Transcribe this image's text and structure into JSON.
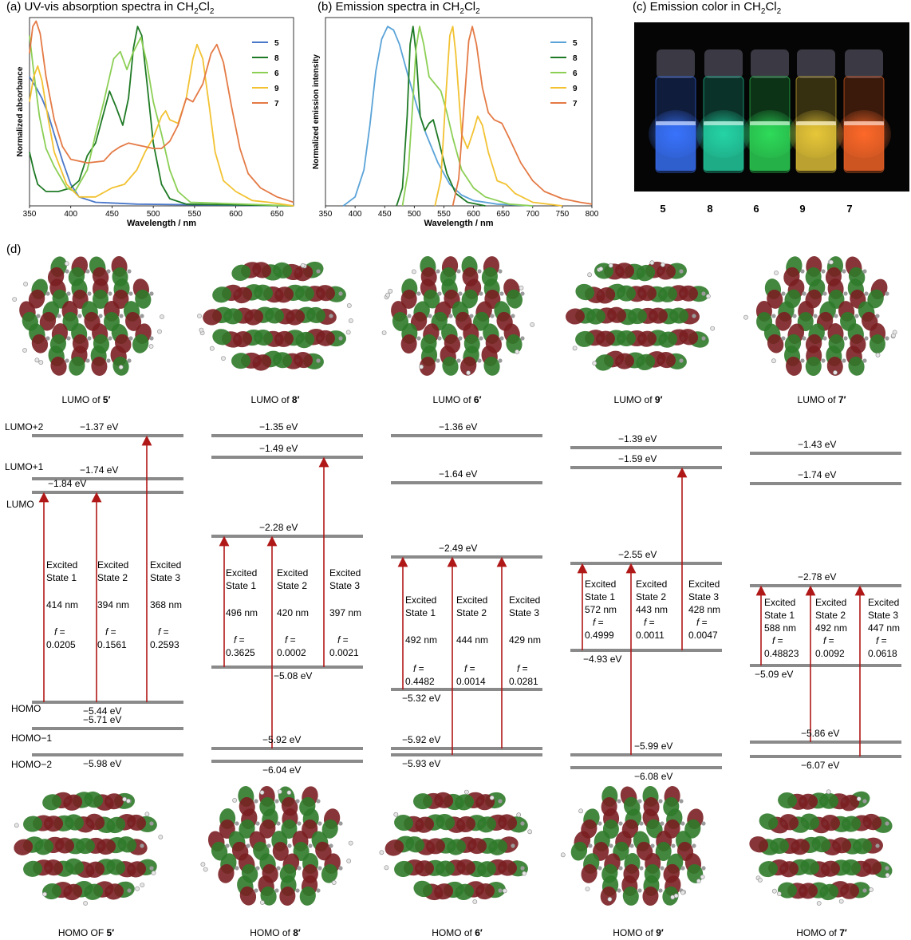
{
  "panels": {
    "a_title": "(a) UV-vis absorption spectra in CH",
    "b_title": "(b) Emission spectra in CH",
    "c_title": "(c) Emission color in CH",
    "d_label": "(d)",
    "sub2": "2",
    "cl": "Cl",
    "sub2b": "2"
  },
  "vials": {
    "labels": [
      "5",
      "8",
      "6",
      "9",
      "7"
    ],
    "colors": [
      "#3a74ff",
      "#25d6a7",
      "#2fdc5a",
      "#e8c83a",
      "#ff6a2a"
    ]
  },
  "orbitals": {
    "lumo_prefix": [
      "LUMO of ",
      "LUMO  of ",
      "LUMO of ",
      "LUMO of ",
      "LUMO of "
    ],
    "homo_prefix": [
      "HOMO OF ",
      "HOMO of ",
      "HOMO of ",
      "HOMO of ",
      "HOMO of "
    ],
    "compound": [
      "5′",
      "8′",
      "6′",
      "9′",
      "7′"
    ],
    "colors": {
      "lobe_red": "#7a1f22",
      "lobe_green": "#2f7a2a",
      "atom_grey": "#9a9a9a"
    }
  },
  "energy_side_labels": [
    "LUMO+2",
    "LUMO+1",
    "LUMO",
    "HOMO",
    "HOMO−1",
    "HOMO−2"
  ],
  "energy_levels": [
    {
      "upper": [
        "−1.37 eV",
        "−1.74 eV",
        "−1.84 eV"
      ],
      "lower": [
        "−5.44 eV",
        "−5.71 eV",
        "−5.98 eV"
      ]
    },
    {
      "upper": [
        "−1.35 eV",
        "−1.49 eV",
        "−2.28 eV"
      ],
      "lower": [
        "−5.08 eV",
        "−5.92 eV",
        "−6.04 eV"
      ]
    },
    {
      "upper": [
        "−1.36 eV",
        "−1.64 eV",
        "−2.49 eV"
      ],
      "lower": [
        "−5.32 eV",
        "−5.92 eV",
        "−5.93 eV"
      ]
    },
    {
      "upper": [
        "−1.39 eV",
        "−1.59 eV",
        "−2.55 eV"
      ],
      "lower": [
        "−4.93 eV",
        "−5.99 eV",
        "−6.08 eV"
      ]
    },
    {
      "upper": [
        "−1.43 eV",
        "−1.74 eV",
        "−2.78 eV"
      ],
      "lower": [
        "−5.09 eV",
        "−5.86 eV",
        "−6.07 eV"
      ]
    }
  ],
  "excited_states": [
    [
      {
        "name": [
          "Excited",
          "State 1"
        ],
        "nm": "414 nm",
        "f": "0.0205"
      },
      {
        "name": [
          "Excited",
          "State 2"
        ],
        "nm": "394 nm",
        "f": "0.1561"
      },
      {
        "name": [
          "Excited",
          "State 3"
        ],
        "nm": "368 nm",
        "f": "0.2593"
      }
    ],
    [
      {
        "name": [
          "Excited",
          "State 1"
        ],
        "nm": "496 nm",
        "f": "0.3625"
      },
      {
        "name": [
          "Excited",
          "State 2"
        ],
        "nm": "420 nm",
        "f": "0.0002"
      },
      {
        "name": [
          "Excited",
          "State 3"
        ],
        "nm": "397 nm",
        "f": "0.0021"
      }
    ],
    [
      {
        "name": [
          "Excited",
          "State 1"
        ],
        "nm": "492 nm",
        "f": "0.4482"
      },
      {
        "name": [
          "Excited",
          "State 2"
        ],
        "nm": "444 nm",
        "f": "0.0014"
      },
      {
        "name": [
          "Excited",
          "State 3"
        ],
        "nm": "429 nm",
        "f": "0.0281"
      }
    ],
    [
      {
        "name": [
          "Excited",
          "State 1"
        ],
        "nm": "572 nm",
        "f": "0.4999"
      },
      {
        "name": [
          "Excited",
          "State 2"
        ],
        "nm": "443 nm",
        "f": "0.0011"
      },
      {
        "name": [
          "Excited",
          "State 3"
        ],
        "nm": "428 nm",
        "f": "0.0047"
      }
    ],
    [
      {
        "name": [
          "Excited",
          "State 1"
        ],
        "nm": "588 nm",
        "f": "0.48823"
      },
      {
        "name": [
          "Excited",
          "State 2"
        ],
        "nm": "492 nm",
        "f": "0.0092"
      },
      {
        "name": [
          "Excited",
          "State 3"
        ],
        "nm": "447 nm",
        "f": "0.0618"
      }
    ]
  ],
  "f_label": "f",
  "f_eq": " =",
  "chart_data": [
    {
      "type": "line",
      "title": "(a) UV-vis absorption spectra in CH2Cl2",
      "xlabel": "Wavelength / nm",
      "ylabel": "Normalized absorbance",
      "xlim": [
        350,
        670
      ],
      "ylim": [
        0,
        1.05
      ],
      "xticks": [
        350,
        400,
        450,
        500,
        550,
        600,
        650
      ],
      "legend": "top-right",
      "series": [
        {
          "name": "5",
          "color": "#4a78c8",
          "points": [
            [
              350,
              0.72
            ],
            [
              358,
              0.66
            ],
            [
              365,
              0.6
            ],
            [
              372,
              0.52
            ],
            [
              380,
              0.4
            ],
            [
              390,
              0.25
            ],
            [
              400,
              0.12
            ],
            [
              410,
              0.05
            ],
            [
              430,
              0.02
            ],
            [
              480,
              0.01
            ],
            [
              670,
              0.0
            ]
          ]
        },
        {
          "name": "8",
          "color": "#1f7a25",
          "points": [
            [
              350,
              0.3
            ],
            [
              355,
              0.2
            ],
            [
              360,
              0.12
            ],
            [
              370,
              0.08
            ],
            [
              385,
              0.08
            ],
            [
              400,
              0.1
            ],
            [
              410,
              0.14
            ],
            [
              420,
              0.28
            ],
            [
              430,
              0.35
            ],
            [
              440,
              0.52
            ],
            [
              447,
              0.64
            ],
            [
              455,
              0.55
            ],
            [
              463,
              0.45
            ],
            [
              470,
              0.6
            ],
            [
              476,
              0.88
            ],
            [
              481,
              1.0
            ],
            [
              486,
              0.95
            ],
            [
              492,
              0.7
            ],
            [
              500,
              0.35
            ],
            [
              510,
              0.12
            ],
            [
              520,
              0.04
            ],
            [
              540,
              0.01
            ],
            [
              670,
              0.0
            ]
          ]
        },
        {
          "name": "6",
          "color": "#8ccf55",
          "points": [
            [
              350,
              0.95
            ],
            [
              355,
              0.75
            ],
            [
              362,
              0.5
            ],
            [
              370,
              0.32
            ],
            [
              380,
              0.22
            ],
            [
              395,
              0.1
            ],
            [
              405,
              0.08
            ],
            [
              420,
              0.2
            ],
            [
              430,
              0.4
            ],
            [
              440,
              0.58
            ],
            [
              452,
              0.82
            ],
            [
              460,
              0.86
            ],
            [
              468,
              0.76
            ],
            [
              475,
              0.85
            ],
            [
              485,
              0.94
            ],
            [
              492,
              0.8
            ],
            [
              500,
              0.58
            ],
            [
              510,
              0.4
            ],
            [
              520,
              0.2
            ],
            [
              530,
              0.08
            ],
            [
              545,
              0.02
            ],
            [
              670,
              0.0
            ]
          ]
        },
        {
          "name": "9",
          "color": "#f2c232",
          "points": [
            [
              350,
              0.58
            ],
            [
              355,
              0.72
            ],
            [
              360,
              0.78
            ],
            [
              365,
              0.7
            ],
            [
              372,
              0.5
            ],
            [
              380,
              0.3
            ],
            [
              395,
              0.12
            ],
            [
              410,
              0.05
            ],
            [
              430,
              0.05
            ],
            [
              450,
              0.1
            ],
            [
              465,
              0.12
            ],
            [
              480,
              0.2
            ],
            [
              490,
              0.3
            ],
            [
              500,
              0.38
            ],
            [
              510,
              0.5
            ],
            [
              515,
              0.53
            ],
            [
              520,
              0.48
            ],
            [
              530,
              0.46
            ],
            [
              540,
              0.6
            ],
            [
              548,
              0.82
            ],
            [
              553,
              0.9
            ],
            [
              560,
              0.82
            ],
            [
              568,
              0.55
            ],
            [
              575,
              0.3
            ],
            [
              585,
              0.14
            ],
            [
              600,
              0.08
            ],
            [
              620,
              0.03
            ],
            [
              640,
              0.02
            ],
            [
              670,
              0.0
            ]
          ]
        },
        {
          "name": "7",
          "color": "#e47a45",
          "points": [
            [
              350,
              0.85
            ],
            [
              354,
              1.0
            ],
            [
              358,
              1.03
            ],
            [
              363,
              0.96
            ],
            [
              370,
              0.72
            ],
            [
              380,
              0.48
            ],
            [
              390,
              0.33
            ],
            [
              400,
              0.26
            ],
            [
              420,
              0.24
            ],
            [
              440,
              0.25
            ],
            [
              450,
              0.3
            ],
            [
              460,
              0.33
            ],
            [
              470,
              0.35
            ],
            [
              480,
              0.34
            ],
            [
              490,
              0.33
            ],
            [
              500,
              0.32
            ],
            [
              510,
              0.32
            ],
            [
              520,
              0.36
            ],
            [
              530,
              0.45
            ],
            [
              540,
              0.6
            ],
            [
              548,
              0.58
            ],
            [
              560,
              0.68
            ],
            [
              570,
              0.85
            ],
            [
              577,
              0.9
            ],
            [
              585,
              0.8
            ],
            [
              595,
              0.55
            ],
            [
              605,
              0.32
            ],
            [
              615,
              0.18
            ],
            [
              630,
              0.1
            ],
            [
              650,
              0.05
            ],
            [
              670,
              0.02
            ]
          ]
        }
      ]
    },
    {
      "type": "line",
      "title": "(b) Emission spectra in CH2Cl2",
      "xlabel": "Wavelength / nm",
      "ylabel": "Normalized emission intensity",
      "xlim": [
        350,
        800
      ],
      "ylim": [
        0,
        1.05
      ],
      "xticks": [
        350,
        400,
        450,
        500,
        550,
        600,
        650,
        700,
        750,
        800
      ],
      "legend": "top-right",
      "series": [
        {
          "name": "5",
          "color": "#5aa3d8",
          "points": [
            [
              380,
              0.0
            ],
            [
              400,
              0.05
            ],
            [
              415,
              0.2
            ],
            [
              425,
              0.45
            ],
            [
              435,
              0.75
            ],
            [
              445,
              0.93
            ],
            [
              455,
              1.0
            ],
            [
              465,
              0.98
            ],
            [
              475,
              0.9
            ],
            [
              490,
              0.72
            ],
            [
              505,
              0.55
            ],
            [
              520,
              0.4
            ],
            [
              540,
              0.24
            ],
            [
              560,
              0.12
            ],
            [
              580,
              0.06
            ],
            [
              600,
              0.03
            ],
            [
              640,
              0.01
            ],
            [
              700,
              0.0
            ]
          ]
        },
        {
          "name": "8",
          "color": "#1f7a25",
          "points": [
            [
              470,
              0.0
            ],
            [
              480,
              0.1
            ],
            [
              488,
              0.5
            ],
            [
              493,
              0.9
            ],
            [
              498,
              1.0
            ],
            [
              503,
              0.85
            ],
            [
              510,
              0.5
            ],
            [
              518,
              0.42
            ],
            [
              525,
              0.46
            ],
            [
              532,
              0.48
            ],
            [
              540,
              0.38
            ],
            [
              555,
              0.18
            ],
            [
              570,
              0.07
            ],
            [
              590,
              0.02
            ],
            [
              620,
              0.0
            ]
          ]
        },
        {
          "name": "6",
          "color": "#8ccf55",
          "points": [
            [
              480,
              0.0
            ],
            [
              490,
              0.2
            ],
            [
              497,
              0.55
            ],
            [
              503,
              0.88
            ],
            [
              509,
              1.0
            ],
            [
              516,
              0.9
            ],
            [
              525,
              0.72
            ],
            [
              535,
              0.68
            ],
            [
              545,
              0.64
            ],
            [
              555,
              0.52
            ],
            [
              565,
              0.38
            ],
            [
              580,
              0.2
            ],
            [
              600,
              0.1
            ],
            [
              620,
              0.05
            ],
            [
              660,
              0.01
            ],
            [
              700,
              0.0
            ]
          ]
        },
        {
          "name": "9",
          "color": "#f2c232",
          "points": [
            [
              535,
              0.0
            ],
            [
              545,
              0.15
            ],
            [
              553,
              0.6
            ],
            [
              560,
              0.95
            ],
            [
              565,
              1.0
            ],
            [
              570,
              0.85
            ],
            [
              580,
              0.4
            ],
            [
              590,
              0.32
            ],
            [
              600,
              0.42
            ],
            [
              607,
              0.5
            ],
            [
              615,
              0.45
            ],
            [
              625,
              0.3
            ],
            [
              640,
              0.14
            ],
            [
              655,
              0.12
            ],
            [
              670,
              0.07
            ],
            [
              700,
              0.02
            ],
            [
              750,
              0.0
            ]
          ]
        },
        {
          "name": "7",
          "color": "#e47a45",
          "points": [
            [
              565,
              0.0
            ],
            [
              575,
              0.15
            ],
            [
              585,
              0.6
            ],
            [
              592,
              0.92
            ],
            [
              598,
              1.0
            ],
            [
              605,
              0.9
            ],
            [
              615,
              0.66
            ],
            [
              625,
              0.52
            ],
            [
              635,
              0.48
            ],
            [
              648,
              0.46
            ],
            [
              660,
              0.38
            ],
            [
              680,
              0.24
            ],
            [
              700,
              0.14
            ],
            [
              720,
              0.08
            ],
            [
              750,
              0.04
            ],
            [
              780,
              0.02
            ],
            [
              800,
              0.01
            ]
          ]
        }
      ]
    }
  ]
}
